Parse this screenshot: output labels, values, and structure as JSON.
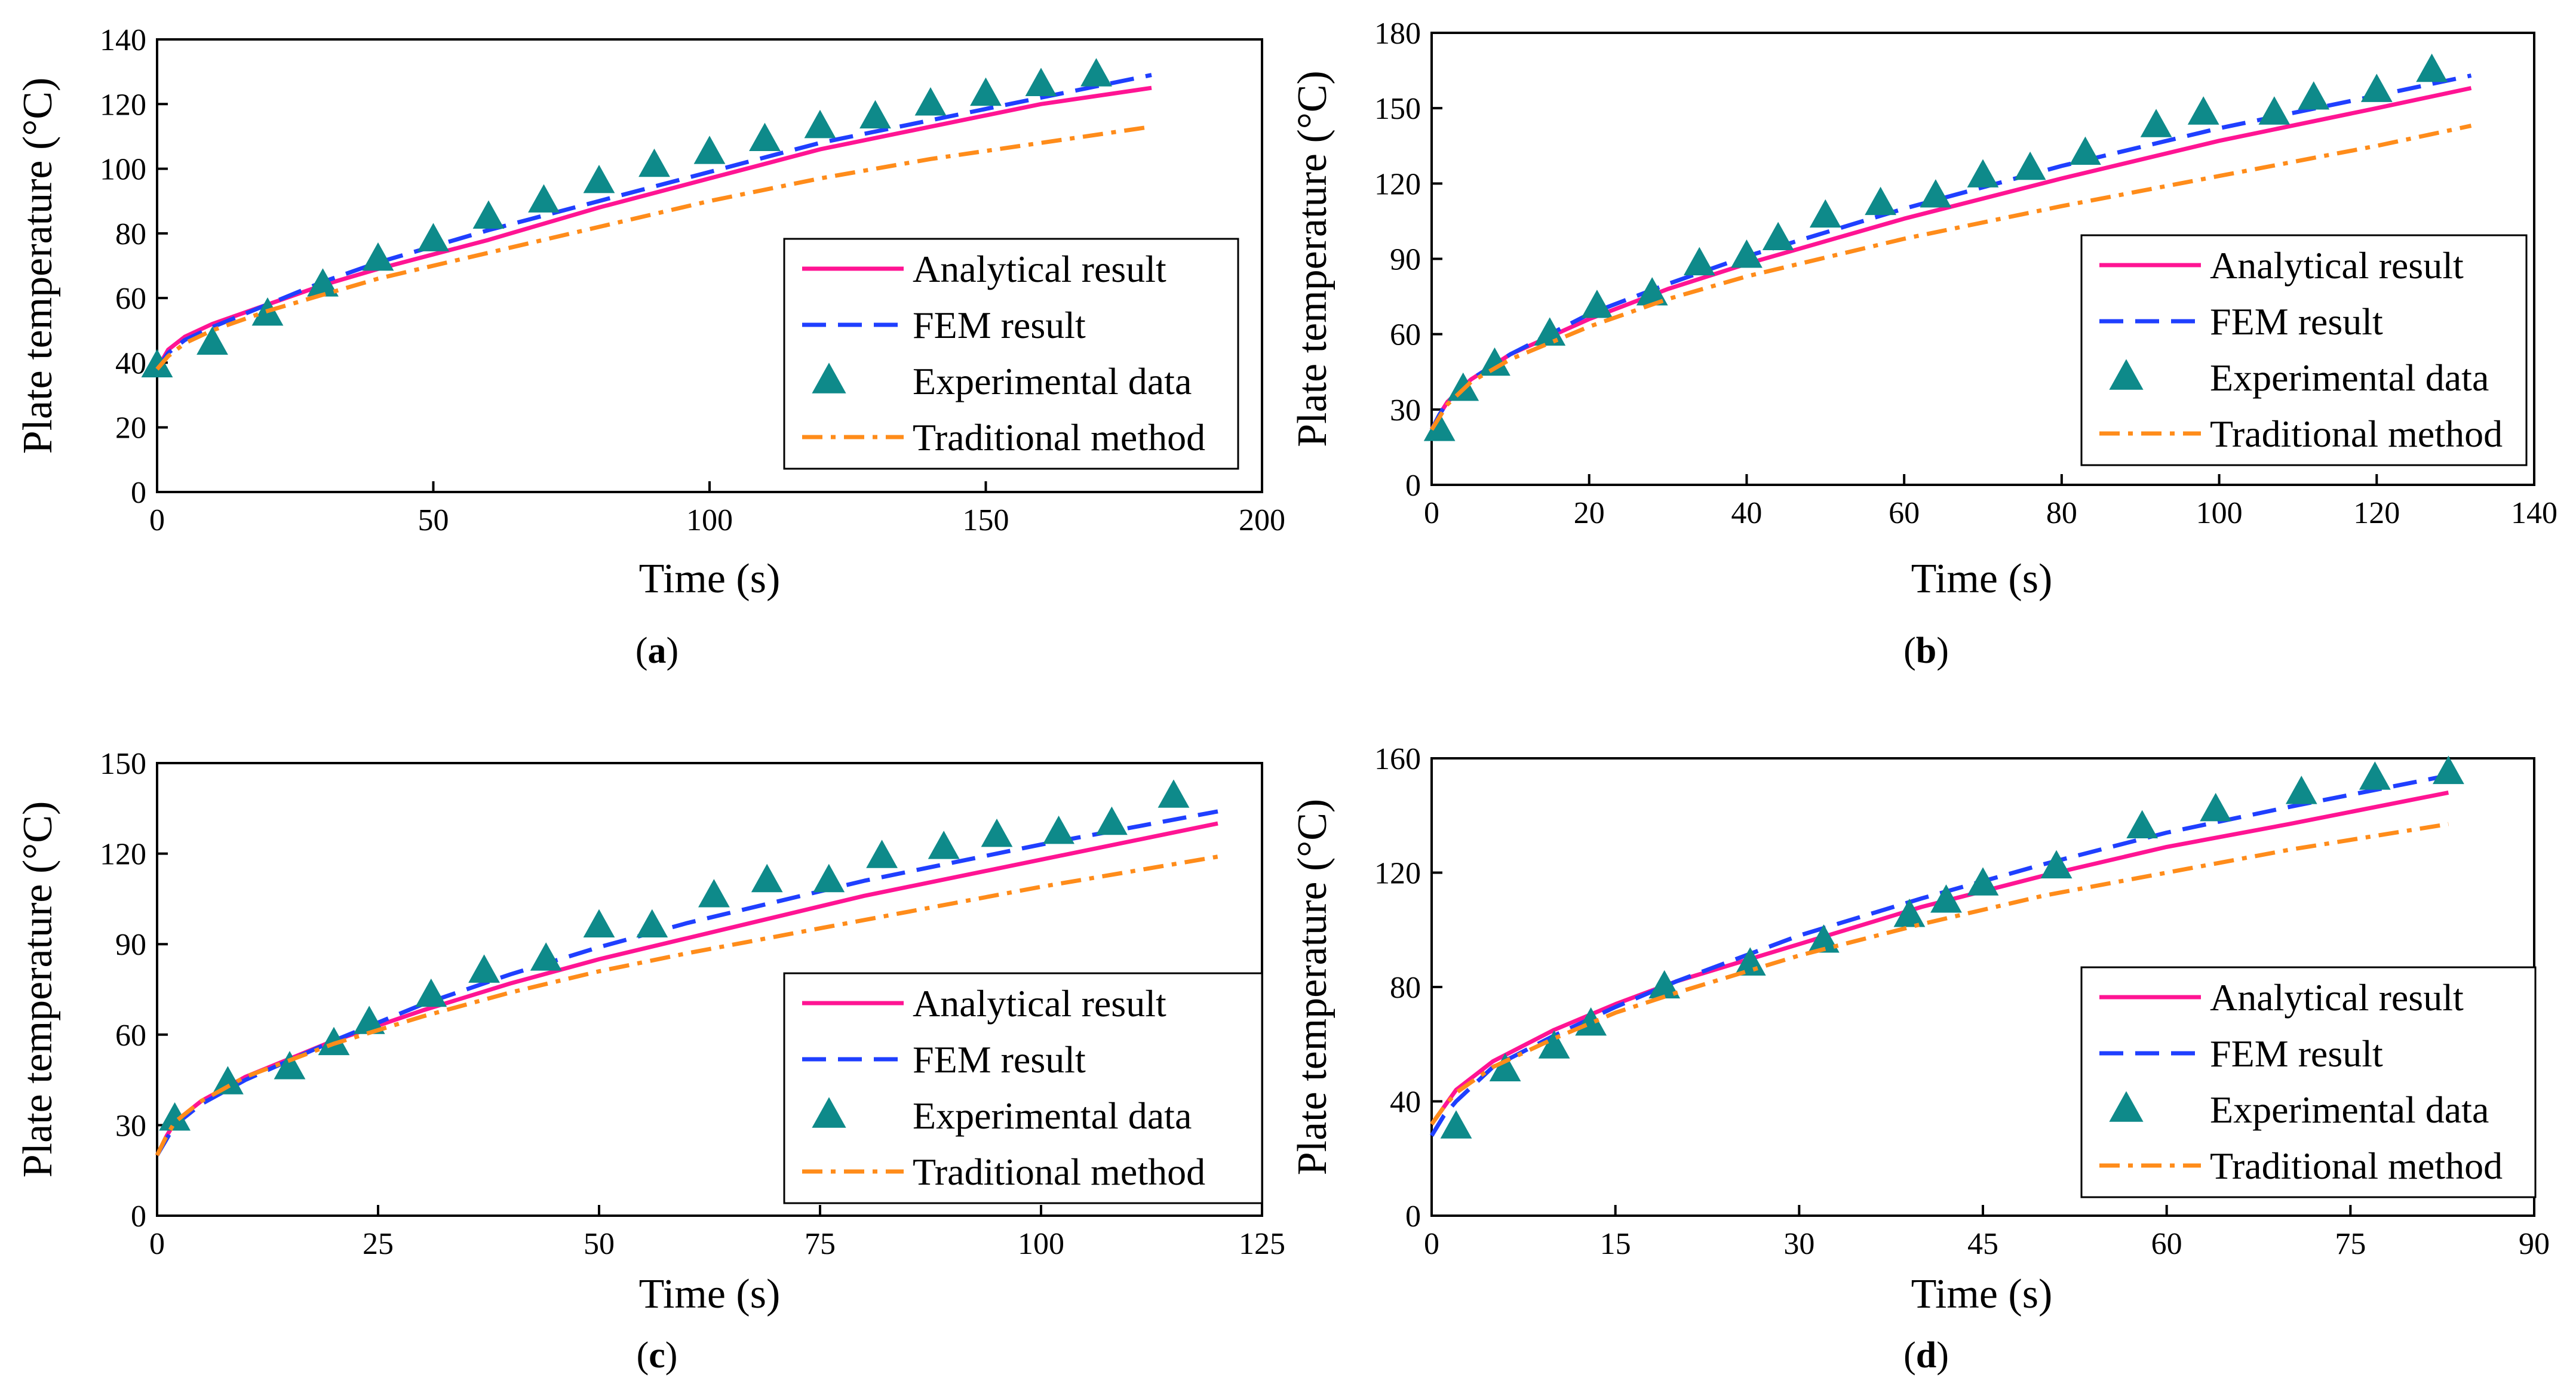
{
  "chart_data": [
    {
      "panel": "a",
      "caption_open": "(",
      "caption_letter": "a",
      "caption_close": ")",
      "type": "line",
      "xlabel": "Time (s)",
      "ylabel": "Plate temperature (°C)",
      "xlim": [
        0,
        200
      ],
      "ylim": [
        0,
        140
      ],
      "xticks": [
        0,
        50,
        100,
        150,
        200
      ],
      "yticks": [
        0,
        20,
        40,
        60,
        80,
        100,
        120,
        140
      ],
      "legend_position": "bottom-right",
      "series": [
        {
          "name": "Analytical result",
          "style": "solid",
          "color": "#ff1493",
          "x": [
            0,
            2,
            5,
            10,
            20,
            30,
            40,
            60,
            80,
            100,
            120,
            140,
            160,
            180
          ],
          "y": [
            38,
            44,
            48,
            52,
            58,
            64,
            69,
            78,
            88,
            97,
            106,
            113,
            120,
            125
          ]
        },
        {
          "name": "FEM result",
          "style": "dashed",
          "color": "#1f3fff",
          "x": [
            0,
            2,
            5,
            10,
            20,
            30,
            40,
            60,
            80,
            100,
            120,
            140,
            160,
            180
          ],
          "y": [
            38,
            43,
            47,
            51,
            58,
            65,
            71,
            81,
            90,
            99,
            108,
            115,
            122,
            129
          ]
        },
        {
          "name": "Experimental data",
          "style": "marker",
          "color": "#0e8a8a",
          "x": [
            0,
            10,
            20,
            30,
            40,
            50,
            60,
            70,
            80,
            90,
            100,
            110,
            120,
            130,
            140,
            150,
            160,
            170
          ],
          "y": [
            39,
            46,
            55,
            64,
            72,
            78,
            85,
            90,
            96,
            101,
            105,
            109,
            113,
            116,
            120,
            123,
            126,
            129
          ]
        },
        {
          "name": "Traditional method",
          "style": "dashdot",
          "color": "#ff8c1a",
          "x": [
            0,
            2,
            5,
            10,
            20,
            30,
            40,
            60,
            80,
            100,
            120,
            140,
            160,
            180
          ],
          "y": [
            38,
            42,
            46,
            50,
            56,
            61,
            66,
            74,
            82,
            90,
            97,
            103,
            108,
            113
          ]
        }
      ]
    },
    {
      "panel": "b",
      "caption_open": "(",
      "caption_letter": "b",
      "caption_close": ")",
      "type": "line",
      "xlabel": "Time (s)",
      "ylabel": "Plate temperature (°C)",
      "xlim": [
        0,
        140
      ],
      "ylim": [
        0,
        180
      ],
      "xticks": [
        0,
        20,
        40,
        60,
        80,
        100,
        120,
        140
      ],
      "yticks": [
        0,
        30,
        60,
        90,
        120,
        150,
        180
      ],
      "legend_position": "bottom-right",
      "series": [
        {
          "name": "Analytical result",
          "style": "solid",
          "color": "#ff1493",
          "x": [
            0,
            1,
            2,
            5,
            10,
            20,
            30,
            40,
            60,
            80,
            100,
            120,
            132
          ],
          "y": [
            22,
            28,
            33,
            42,
            52,
            66,
            78,
            88,
            106,
            122,
            137,
            150,
            158
          ]
        },
        {
          "name": "FEM result",
          "style": "dashed",
          "color": "#1f3fff",
          "x": [
            0,
            1,
            2,
            5,
            10,
            20,
            30,
            40,
            60,
            80,
            100,
            120,
            132
          ],
          "y": [
            22,
            28,
            33,
            42,
            52,
            68,
            80,
            91,
            110,
            127,
            142,
            155,
            163
          ]
        },
        {
          "name": "Experimental data",
          "style": "marker",
          "color": "#0e8a8a",
          "x": [
            1,
            4,
            8,
            15,
            21,
            28,
            34,
            40,
            44,
            50,
            57,
            64,
            70,
            76,
            83,
            92,
            98,
            107,
            112,
            120,
            127
          ],
          "y": [
            22,
            38,
            48,
            60,
            71,
            76,
            88,
            91,
            98,
            107,
            112,
            115,
            123,
            126,
            132,
            143,
            148,
            148,
            154,
            157,
            165
          ]
        },
        {
          "name": "Traditional method",
          "style": "dashdot",
          "color": "#ff8c1a",
          "x": [
            0,
            1,
            2,
            5,
            10,
            20,
            30,
            40,
            60,
            80,
            100,
            120,
            132
          ],
          "y": [
            22,
            27,
            32,
            41,
            50,
            63,
            74,
            83,
            98,
            111,
            123,
            135,
            143
          ]
        }
      ]
    },
    {
      "panel": "c",
      "caption_open": "(",
      "caption_letter": "c",
      "caption_close": ")",
      "type": "line",
      "xlabel": "Time (s)",
      "ylabel": "Plate temperature (°C)",
      "xlim": [
        0,
        125
      ],
      "ylim": [
        0,
        150
      ],
      "xticks": [
        0,
        25,
        50,
        75,
        100,
        125
      ],
      "yticks": [
        0,
        30,
        60,
        90,
        120,
        150
      ],
      "legend_position": "bottom-right",
      "series": [
        {
          "name": "Analytical result",
          "style": "solid",
          "color": "#ff1493",
          "x": [
            0,
            1,
            2,
            5,
            10,
            20,
            30,
            40,
            50,
            60,
            80,
            100,
            120
          ],
          "y": [
            20,
            26,
            31,
            38,
            46,
            58,
            68,
            77,
            85,
            92,
            106,
            118,
            130
          ]
        },
        {
          "name": "FEM result",
          "style": "dashed",
          "color": "#1f3fff",
          "x": [
            0,
            1,
            2,
            5,
            10,
            20,
            30,
            40,
            50,
            60,
            80,
            100,
            120
          ],
          "y": [
            20,
            25,
            30,
            37,
            45,
            58,
            70,
            80,
            89,
            97,
            111,
            123,
            134
          ]
        },
        {
          "name": "Experimental data",
          "style": "marker",
          "color": "#0e8a8a",
          "x": [
            2,
            8,
            15,
            20,
            24,
            31,
            37,
            44,
            50,
            56,
            63,
            69,
            76,
            82,
            89,
            95,
            102,
            108,
            115
          ],
          "y": [
            32,
            44,
            49,
            57,
            64,
            73,
            81,
            85,
            96,
            96,
            106,
            111,
            111,
            119,
            122,
            126,
            127,
            130,
            139
          ]
        },
        {
          "name": "Traditional method",
          "style": "dashdot",
          "color": "#ff8c1a",
          "x": [
            0,
            1,
            2,
            5,
            10,
            20,
            30,
            40,
            50,
            60,
            80,
            100,
            120
          ],
          "y": [
            20,
            26,
            31,
            38,
            46,
            57,
            66,
            74,
            81,
            87,
            98,
            109,
            119
          ]
        }
      ]
    },
    {
      "panel": "d",
      "caption_open": "(",
      "caption_letter": "d",
      "caption_close": ")",
      "type": "line",
      "xlabel": "Time (s)",
      "ylabel": "Plate temperature (°C)",
      "xlim": [
        0,
        90
      ],
      "ylim": [
        0,
        160
      ],
      "xticks": [
        0,
        15,
        30,
        45,
        60,
        75,
        90
      ],
      "yticks": [
        0,
        40,
        80,
        120,
        160
      ],
      "legend_position": "bottom-right",
      "series": [
        {
          "name": "Analytical result",
          "style": "solid",
          "color": "#ff1493",
          "x": [
            0,
            1,
            2,
            5,
            10,
            15,
            20,
            30,
            40,
            50,
            60,
            70,
            83
          ],
          "y": [
            32,
            38,
            44,
            54,
            65,
            74,
            82,
            95,
            108,
            119,
            129,
            137,
            148
          ]
        },
        {
          "name": "FEM result",
          "style": "dashed",
          "color": "#1f3fff",
          "x": [
            0,
            1,
            2,
            5,
            10,
            15,
            20,
            30,
            40,
            50,
            60,
            70,
            83
          ],
          "y": [
            28,
            35,
            40,
            52,
            63,
            73,
            82,
            98,
            111,
            123,
            134,
            143,
            154
          ]
        },
        {
          "name": "Experimental data",
          "style": "marker",
          "color": "#0e8a8a",
          "x": [
            2,
            6,
            10,
            13,
            19,
            26,
            32,
            39,
            42,
            45,
            51,
            58,
            64,
            71,
            77,
            83
          ],
          "y": [
            31,
            51,
            59,
            67,
            80,
            88,
            96,
            105,
            110,
            116,
            122,
            136,
            142,
            148,
            153,
            155
          ]
        },
        {
          "name": "Traditional method",
          "style": "dashdot",
          "color": "#ff8c1a",
          "x": [
            0,
            1,
            2,
            5,
            10,
            15,
            20,
            30,
            40,
            50,
            60,
            70,
            83
          ],
          "y": [
            32,
            38,
            43,
            52,
            62,
            71,
            78,
            91,
            102,
            112,
            120,
            128,
            137
          ]
        }
      ]
    }
  ]
}
